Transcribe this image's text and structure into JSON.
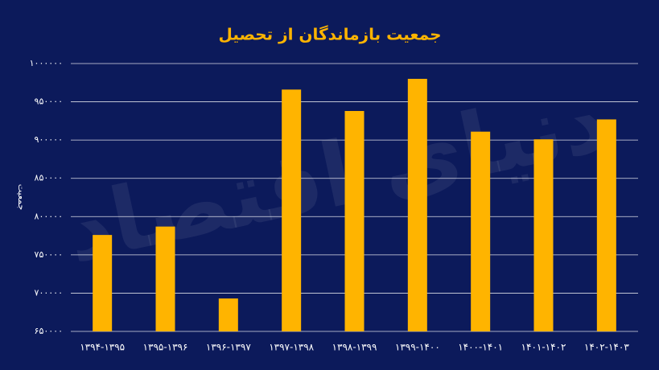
{
  "chart_data": {
    "type": "bar",
    "title": "جمعیت بازماندگان از تحصیل",
    "y_label": "جمعیت",
    "watermark": "دنیای اقتصاد",
    "categories": [
      "۱۳۹۴-۱۳۹۵",
      "۱۳۹۵-۱۳۹۶",
      "۱۳۹۶-۱۳۹۷",
      "۱۳۹۷-۱۳۹۸",
      "۱۳۹۸-۱۳۹۹",
      "۱۳۹۹-۱۴۰۰",
      "۱۴۰۰-۱۴۰۱",
      "۱۴۰۱-۱۴۰۲",
      "۱۴۰۲-۱۴۰۳"
    ],
    "values": [
      776000,
      787000,
      693000,
      966000,
      938000,
      980000,
      911000,
      901000,
      927000
    ],
    "color": "#ffb400",
    "ylim": [
      650000,
      1000000
    ],
    "yticks": [
      {
        "value": 650000,
        "label": "۶۵۰۰۰۰"
      },
      {
        "value": 700000,
        "label": "۷۰۰۰۰۰"
      },
      {
        "value": 750000,
        "label": "۷۵۰۰۰۰"
      },
      {
        "value": 800000,
        "label": "۸۰۰۰۰۰"
      },
      {
        "value": 850000,
        "label": "۸۵۰۰۰۰"
      },
      {
        "value": 900000,
        "label": "۹۰۰۰۰۰"
      },
      {
        "value": 950000,
        "label": "۹۵۰۰۰۰"
      },
      {
        "value": 1000000,
        "label": "۱۰۰۰۰۰۰"
      }
    ],
    "grid": true
  }
}
